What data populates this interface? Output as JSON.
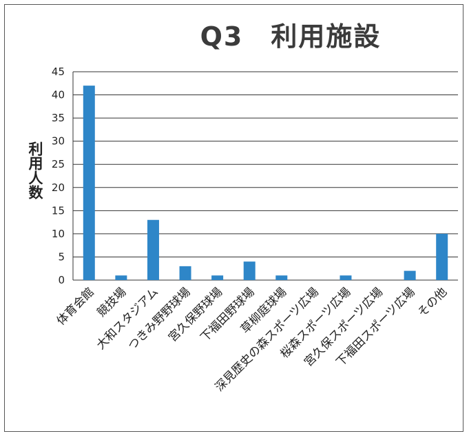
{
  "chart_data": {
    "type": "bar",
    "title": "Q3　利用施設",
    "ylabel": "利用人数",
    "xlabel": "",
    "ylim": [
      0,
      45
    ],
    "yticks": [
      0,
      5,
      10,
      15,
      20,
      25,
      30,
      35,
      40,
      45
    ],
    "grid": true,
    "bar_color": "#2e86c8",
    "categories": [
      "体育会館",
      "競技場",
      "大和スタジアム",
      "つきみ野野球場",
      "宮久保野球場",
      "下福田野球場",
      "草柳庭球場",
      "深見歴史の森スポーツ広場",
      "桜森スポーツ広場",
      "宮久保スポーツ広場",
      "下福田スポーツ広場",
      "その他"
    ],
    "values": [
      42,
      1,
      13,
      3,
      1,
      4,
      1,
      0,
      1,
      0,
      2,
      10
    ]
  }
}
